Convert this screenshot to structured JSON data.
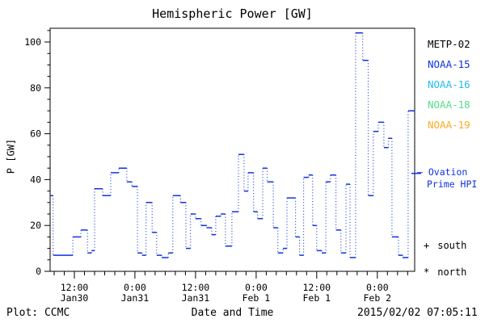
{
  "title": "Hemispheric Power [GW]",
  "legend": {
    "satellites": [
      {
        "label": "METP-02",
        "color": "#000000"
      },
      {
        "label": "NOAA-15",
        "color": "#1133dd"
      },
      {
        "label": "NOAA-16",
        "color": "#22bbee"
      },
      {
        "label": "NOAA-18",
        "color": "#55dd88"
      },
      {
        "label": "NOAA-19",
        "color": "#ffaa22"
      }
    ],
    "model_line1": "— Ovation",
    "model_line2": "Prime HPI",
    "model_color": "#1133dd",
    "south": {
      "marker": "+",
      "label": "south"
    },
    "north": {
      "marker": "*",
      "label": "north"
    }
  },
  "footer": {
    "left": "Plot: CCMC",
    "center": "Date and Time",
    "right": "2015/02/02 07:05:11"
  },
  "chart_data": {
    "type": "line",
    "subtype": "step-stairs, solid horizontal levels joined by dotted vertical connectors",
    "title": "Hemispheric Power [GW]",
    "xlabel": "Date and Time",
    "ylabel": "P [GW]",
    "ylim": [
      0,
      106
    ],
    "y_major_ticks": [
      0,
      20,
      40,
      60,
      80,
      100
    ],
    "y_minor_step": 5,
    "x_units": "hours since Jan 30 00:00 (2015)",
    "x_hours_range": [
      7.2,
      79.4
    ],
    "x_minor_step_hours": 2,
    "x_major_ticks": [
      {
        "t": 12,
        "time": "12:00",
        "date": "Jan30"
      },
      {
        "t": 24,
        "time": "0:00",
        "date": "Jan31"
      },
      {
        "t": 36,
        "time": "12:00",
        "date": "Jan31"
      },
      {
        "t": 48,
        "time": "0:00",
        "date": "Feb 1"
      },
      {
        "t": 60,
        "time": "12:00",
        "date": "Feb 1"
      },
      {
        "t": 72,
        "time": "0:00",
        "date": "Feb 2"
      }
    ],
    "line_color": "#1133dd",
    "right_axis_marker_gw": 42.7,
    "series": [
      {
        "name": "Ovation Prime HPI",
        "segments_format": "[t_start_hours, t_end_hours, power_GW]",
        "segments": [
          [
            7.2,
            7.8,
            33
          ],
          [
            7.8,
            11.7,
            7
          ],
          [
            11.7,
            13.3,
            15
          ],
          [
            13.3,
            14.6,
            18
          ],
          [
            14.6,
            15.4,
            8
          ],
          [
            15.4,
            16,
            9
          ],
          [
            16,
            17.6,
            36
          ],
          [
            17.6,
            19.2,
            33
          ],
          [
            19.2,
            20.8,
            43
          ],
          [
            20.8,
            22.4,
            45
          ],
          [
            22.4,
            23.4,
            39
          ],
          [
            23.4,
            24.5,
            37
          ],
          [
            24.5,
            25.4,
            8
          ],
          [
            25.4,
            26.2,
            7
          ],
          [
            26.2,
            27.4,
            30
          ],
          [
            27.4,
            28.3,
            17
          ],
          [
            28.3,
            29.3,
            7
          ],
          [
            29.3,
            30.6,
            6
          ],
          [
            30.6,
            31.5,
            8
          ],
          [
            31.5,
            33,
            33
          ],
          [
            33,
            34.1,
            30
          ],
          [
            34.1,
            35,
            10
          ],
          [
            35,
            36,
            25
          ],
          [
            36,
            37.1,
            23
          ],
          [
            37.1,
            38.2,
            20
          ],
          [
            38.2,
            39.2,
            19
          ],
          [
            39.2,
            40,
            16
          ],
          [
            40,
            41,
            24
          ],
          [
            41,
            41.9,
            25
          ],
          [
            41.9,
            43.2,
            11
          ],
          [
            43.2,
            44.5,
            26
          ],
          [
            44.5,
            45.6,
            51
          ],
          [
            45.6,
            46.4,
            35
          ],
          [
            46.4,
            47.5,
            43
          ],
          [
            47.5,
            48.3,
            26
          ],
          [
            48.3,
            49.3,
            23
          ],
          [
            49.3,
            50.2,
            45
          ],
          [
            50.2,
            51.4,
            39
          ],
          [
            51.4,
            52.3,
            19
          ],
          [
            52.3,
            53.3,
            8
          ],
          [
            53.3,
            54.1,
            10
          ],
          [
            54.1,
            55.8,
            32
          ],
          [
            55.8,
            56.6,
            15
          ],
          [
            56.6,
            57.4,
            7
          ],
          [
            57.4,
            58.4,
            41
          ],
          [
            58.4,
            59.2,
            42
          ],
          [
            59.2,
            60,
            20
          ],
          [
            60,
            61,
            9
          ],
          [
            61,
            61.8,
            8
          ],
          [
            61.8,
            62.7,
            39
          ],
          [
            62.7,
            63.8,
            42
          ],
          [
            63.8,
            64.8,
            18
          ],
          [
            64.8,
            65.8,
            8
          ],
          [
            65.8,
            66.6,
            38
          ],
          [
            66.6,
            67.7,
            6
          ],
          [
            67.7,
            69.1,
            104
          ],
          [
            69.1,
            70.2,
            92
          ],
          [
            70.2,
            71.2,
            33
          ],
          [
            71.2,
            72.2,
            61
          ],
          [
            72.2,
            73.3,
            65
          ],
          [
            73.3,
            74.2,
            54
          ],
          [
            74.2,
            74.9,
            58
          ],
          [
            74.9,
            76.2,
            15
          ],
          [
            76.2,
            77,
            7
          ],
          [
            77,
            78.1,
            6
          ],
          [
            78.1,
            79.4,
            70
          ]
        ]
      }
    ]
  }
}
